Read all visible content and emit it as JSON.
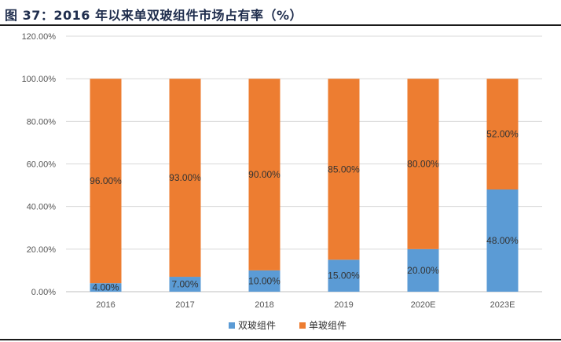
{
  "title": "图 37：2016 年以来单双玻组件市场占有率（%）",
  "chart_data": {
    "type": "bar",
    "stacked": true,
    "categories": [
      "2016",
      "2017",
      "2018",
      "2019",
      "2020E",
      "2023E"
    ],
    "series": [
      {
        "name": "双玻组件",
        "color": "#5b9bd5",
        "values": [
          4,
          7,
          10,
          15,
          20,
          48
        ],
        "labels": [
          "4.00%",
          "7.00%",
          "10.00%",
          "15.00%",
          "20.00%",
          "48.00%"
        ]
      },
      {
        "name": "单玻组件",
        "color": "#ed7d31",
        "values": [
          96,
          93,
          90,
          85,
          80,
          52
        ],
        "labels": [
          "96.00%",
          "93.00%",
          "90.00%",
          "85.00%",
          "80.00%",
          "52.00%"
        ]
      }
    ],
    "ylim": [
      0,
      120
    ],
    "yticks": [
      0,
      20,
      40,
      60,
      80,
      100,
      120
    ],
    "ytick_labels": [
      "0.00%",
      "20.00%",
      "40.00%",
      "60.00%",
      "80.00%",
      "100.00%",
      "120.00%"
    ],
    "grid": true,
    "legend": "bottom-center"
  }
}
